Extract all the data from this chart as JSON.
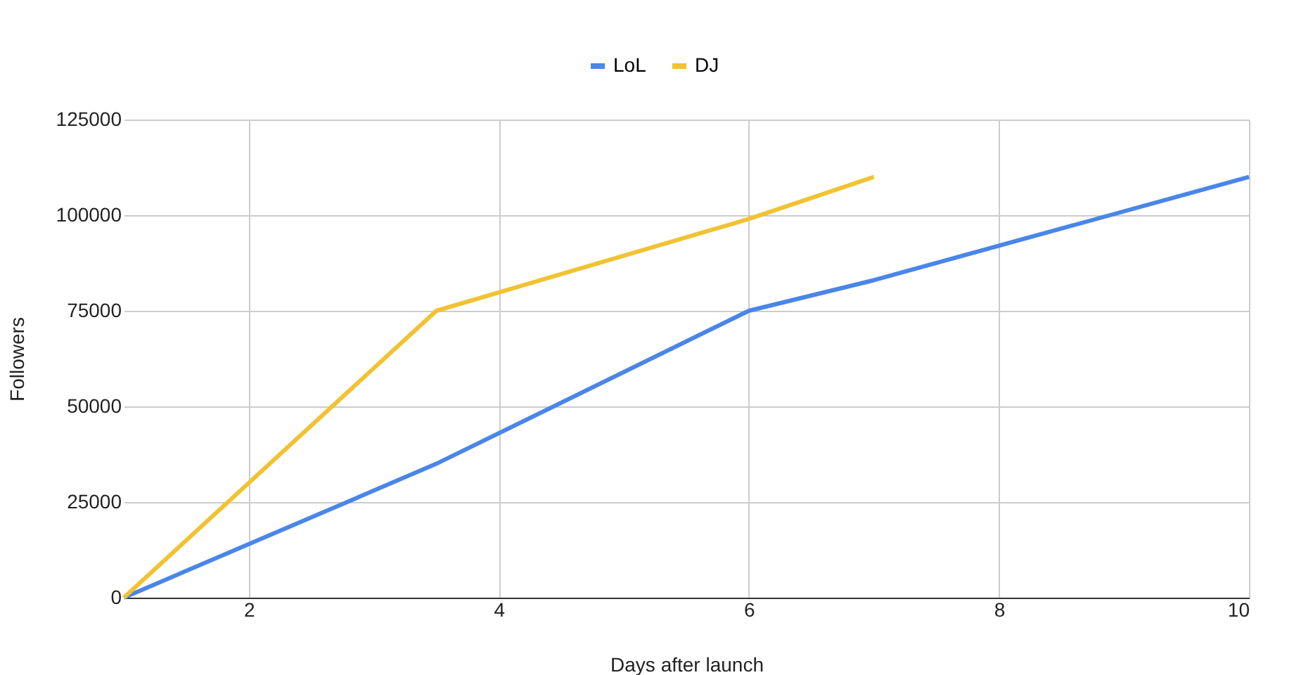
{
  "chart_data": {
    "type": "line",
    "xlabel": "Days after launch",
    "ylabel": "Followers",
    "xlim": [
      1,
      10
    ],
    "xticks": [
      2,
      4,
      6,
      8,
      10
    ],
    "ylim": [
      0,
      125000
    ],
    "yticks": [
      0,
      25000,
      50000,
      75000,
      100000,
      125000
    ],
    "grid": true,
    "legend": "top",
    "marker": "none",
    "line_style": "solid",
    "series": [
      {
        "name": "LoL",
        "color": "#4a86e8",
        "x": [
          1,
          3.5,
          6,
          7,
          10
        ],
        "values": [
          0,
          35000,
          75000,
          83000,
          110000
        ]
      },
      {
        "name": "DJ",
        "color": "#f1c232",
        "x": [
          1,
          3.5,
          6,
          7
        ],
        "values": [
          0,
          75000,
          99000,
          110000
        ]
      }
    ]
  }
}
